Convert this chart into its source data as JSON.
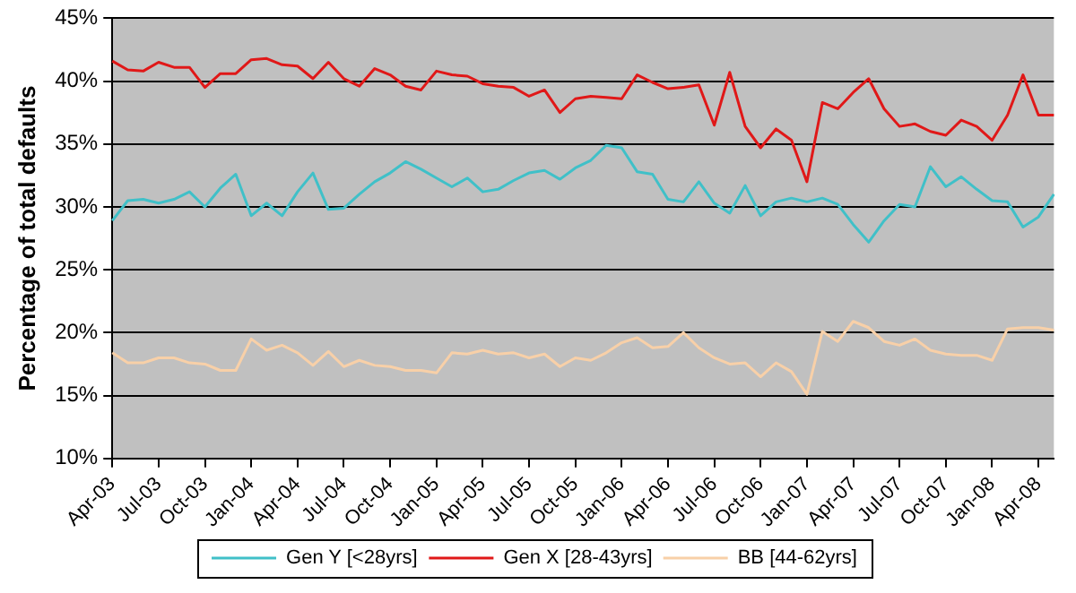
{
  "chart_data": {
    "type": "line",
    "ylabel": "Percentage of total defaults",
    "categories": [
      "Apr-03",
      null,
      null,
      "Jul-03",
      null,
      null,
      "Oct-03",
      null,
      null,
      "Jan-04",
      null,
      null,
      "Apr-04",
      null,
      null,
      "Jul-04",
      null,
      null,
      "Oct-04",
      null,
      null,
      "Jan-05",
      null,
      null,
      "Apr-05",
      null,
      null,
      "Jul-05",
      null,
      null,
      "Oct-05",
      null,
      null,
      "Jan-06",
      null,
      null,
      "Apr-06",
      null,
      null,
      "Jul-06",
      null,
      null,
      "Oct-06",
      null,
      null,
      "Jan-07",
      null,
      null,
      "Apr-07",
      null,
      null,
      "Jul-07",
      null,
      null,
      "Oct-07",
      null,
      null,
      "Jan-08",
      null,
      null,
      "Apr-08",
      null
    ],
    "series": [
      {
        "name": "Gen Y [<28yrs]",
        "color": "#40c0c8",
        "values": [
          28.9,
          30.5,
          30.6,
          30.3,
          30.6,
          31.2,
          30.0,
          31.5,
          32.6,
          29.3,
          30.3,
          29.3,
          31.2,
          32.7,
          29.8,
          29.9,
          31.0,
          32.0,
          32.7,
          33.6,
          33.0,
          32.3,
          31.6,
          32.3,
          31.2,
          31.4,
          32.1,
          32.7,
          32.9,
          32.2,
          33.1,
          33.7,
          34.9,
          34.7,
          32.8,
          32.6,
          30.6,
          30.4,
          32.0,
          30.3,
          29.5,
          31.7,
          29.3,
          30.4,
          30.7,
          30.4,
          30.7,
          30.2,
          28.6,
          27.2,
          28.9,
          30.2,
          30.0,
          33.2,
          31.6,
          32.4,
          31.4,
          30.5,
          30.4,
          28.4,
          29.2,
          31.0
        ]
      },
      {
        "name": "Gen X [28-43yrs]",
        "color": "#e01818",
        "values": [
          41.6,
          40.9,
          40.8,
          41.5,
          41.1,
          41.1,
          39.5,
          40.6,
          40.6,
          41.7,
          41.8,
          41.3,
          41.2,
          40.2,
          41.5,
          40.2,
          39.6,
          41.0,
          40.5,
          39.6,
          39.3,
          40.8,
          40.5,
          40.4,
          39.8,
          39.6,
          39.5,
          38.8,
          39.3,
          37.5,
          38.6,
          38.8,
          38.7,
          38.6,
          40.5,
          39.9,
          39.4,
          39.5,
          39.7,
          36.5,
          40.7,
          36.4,
          34.7,
          36.2,
          35.3,
          32.0,
          38.3,
          37.8,
          39.1,
          40.2,
          37.8,
          36.4,
          36.6,
          36.0,
          35.7,
          36.9,
          36.4,
          35.3,
          37.3,
          40.5,
          37.3,
          37.3
        ]
      },
      {
        "name": "BB [44-62yrs]",
        "color": "#f8d0a8",
        "values": [
          18.4,
          17.6,
          17.6,
          18.0,
          18.0,
          17.6,
          17.5,
          17.0,
          17.0,
          19.5,
          18.6,
          19.0,
          18.4,
          17.4,
          18.5,
          17.3,
          17.8,
          17.4,
          17.3,
          17.0,
          17.0,
          16.8,
          18.4,
          18.3,
          18.6,
          18.3,
          18.4,
          18.0,
          18.3,
          17.3,
          18.0,
          17.8,
          18.4,
          19.2,
          19.6,
          18.8,
          18.9,
          20.0,
          18.8,
          18.0,
          17.5,
          17.6,
          16.5,
          17.6,
          16.9,
          15.1,
          20.1,
          19.3,
          20.9,
          20.4,
          19.3,
          19.0,
          19.5,
          18.6,
          18.3,
          18.2,
          18.2,
          17.8,
          20.3,
          20.4,
          20.4,
          20.2
        ]
      }
    ],
    "ylim": [
      10,
      45
    ],
    "yticks": [
      {
        "value": 10,
        "label": "10%"
      },
      {
        "value": 15,
        "label": "15%"
      },
      {
        "value": 20,
        "label": "20%"
      },
      {
        "value": 25,
        "label": "25%"
      },
      {
        "value": 30,
        "label": "30%"
      },
      {
        "value": 35,
        "label": "35%"
      },
      {
        "value": 40,
        "label": "40%"
      },
      {
        "value": 45,
        "label": "45%"
      }
    ],
    "grid": "y",
    "legend": "bottom",
    "marker": "none",
    "line_style": "solid"
  }
}
